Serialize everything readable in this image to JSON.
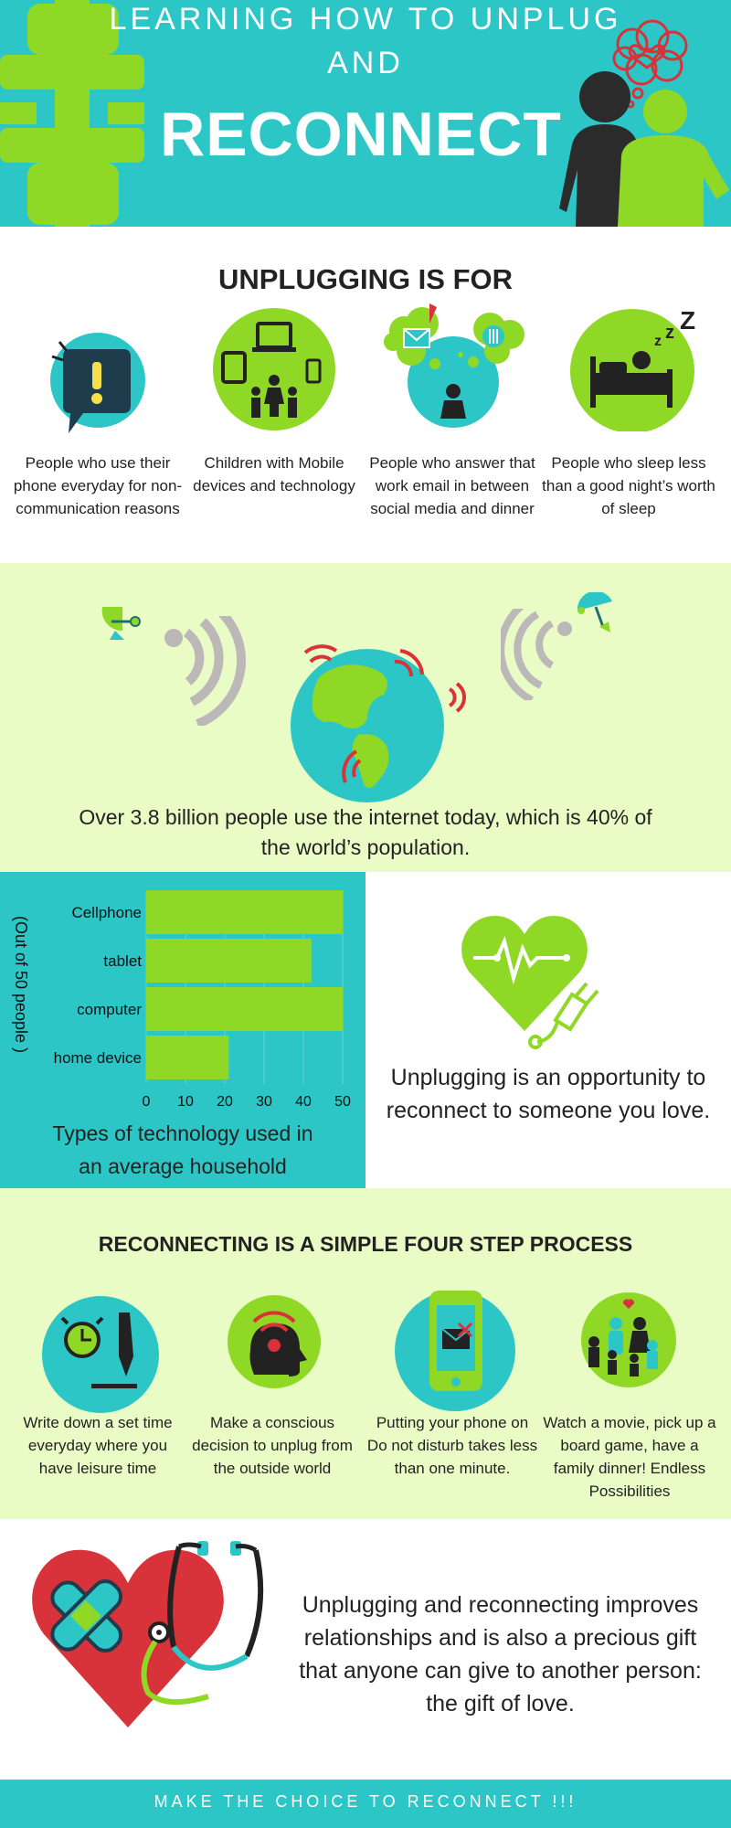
{
  "header": {
    "line1": "LEARNING HOW TO UNPLUG",
    "line2": "AND",
    "line3": "RECONNECT"
  },
  "unplugging_for": {
    "title": "UNPLUGGING IS FOR",
    "items": [
      {
        "icon": "phone-alert-icon",
        "text": "People who use their phone everyday for non-communication reasons"
      },
      {
        "icon": "family-devices-icon",
        "text": "Children with Mobile devices and technology"
      },
      {
        "icon": "email-thought-icon",
        "text": "People who answer that work email in between social media and dinner"
      },
      {
        "icon": "sleep-bed-icon",
        "text": "People who sleep less than a good night’s  worth of sleep"
      }
    ]
  },
  "internet": {
    "text": "Over 3.8 billion people use the internet today, which is 40% of the world’s population."
  },
  "chart_data": {
    "type": "bar",
    "orientation": "horizontal",
    "categories": [
      "Cellphone",
      "tablet",
      "computer",
      "home device"
    ],
    "values": [
      50,
      42,
      50,
      21
    ],
    "xlim": [
      0,
      50
    ],
    "xticks": [
      "0",
      "10",
      "20",
      "30",
      "40",
      "50"
    ],
    "ylabel": "(Out of 50 people )",
    "title": "Types of technology used in an average household",
    "bar_color": "#8fd926",
    "grid": true
  },
  "opportunity": {
    "text": "Unplugging is an opportunity to reconnect to someone you love."
  },
  "steps": {
    "title": "RECONNECTING IS A SIMPLE FOUR STEP PROCESS",
    "items": [
      {
        "icon": "clock-pen-icon",
        "text": "Write down a set time everyday where you have leisure time"
      },
      {
        "icon": "head-signal-icon",
        "text": "Make a conscious decision to unplug from the outside world"
      },
      {
        "icon": "phone-mail-icon",
        "text": "Putting your phone on Do not disturb takes less than one minute."
      },
      {
        "icon": "family-love-icon",
        "text": "Watch a movie, pick up a board game, have a family dinner! Endless Possibilities"
      }
    ]
  },
  "gift": {
    "text": "Unplugging and reconnecting improves relationships and is also a precious gift that anyone can give to another person: the gift of love."
  },
  "footer": {
    "text": "MAKE THE CHOICE TO RECONNECT !!!"
  },
  "colors": {
    "teal": "#2cc6c6",
    "lime": "#8fd926",
    "pale_green": "#eafcc6",
    "dark": "#2b2b2b",
    "red": "#d8323a"
  }
}
